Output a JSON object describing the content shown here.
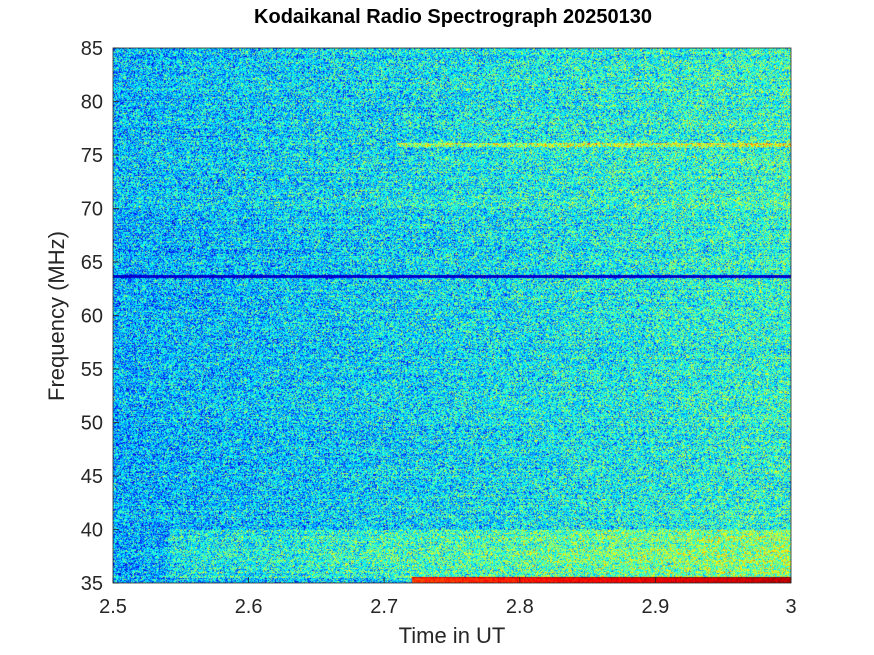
{
  "chart_data": {
    "type": "heatmap",
    "title": "Kodaikanal Radio Spectrograph  20250130",
    "xlabel": "Time in UT",
    "ylabel": "Frequency (MHz)",
    "xlim": [
      2.5,
      3.0
    ],
    "ylim": [
      35,
      85
    ],
    "x_ticks": [
      "2.5",
      "2.6",
      "2.7",
      "2.8",
      "2.9",
      "3"
    ],
    "y_ticks": [
      "35",
      "40",
      "45",
      "50",
      "55",
      "60",
      "65",
      "70",
      "75",
      "80",
      "85"
    ],
    "colormap": "jet",
    "grid": false,
    "features": [
      {
        "kind": "intense-band",
        "freq_mhz": [
          35,
          35.6
        ],
        "time_ut": [
          2.72,
          3.0
        ]
      },
      {
        "kind": "dark-line",
        "freq_mhz": 63.7,
        "time_ut": [
          2.5,
          3.0
        ]
      },
      {
        "kind": "bright-line",
        "freq_mhz": 76.0,
        "time_ut": [
          2.71,
          3.0
        ]
      },
      {
        "kind": "enhanced-band",
        "freq_mhz": [
          35.5,
          40.0
        ],
        "time_ut": [
          2.54,
          3.0
        ]
      }
    ],
    "colors": {
      "dark": "#00006b",
      "background": "#0a4fd6",
      "cyan": "#00e0ff",
      "yellow": "#f5f500",
      "red": "#c80000"
    }
  }
}
